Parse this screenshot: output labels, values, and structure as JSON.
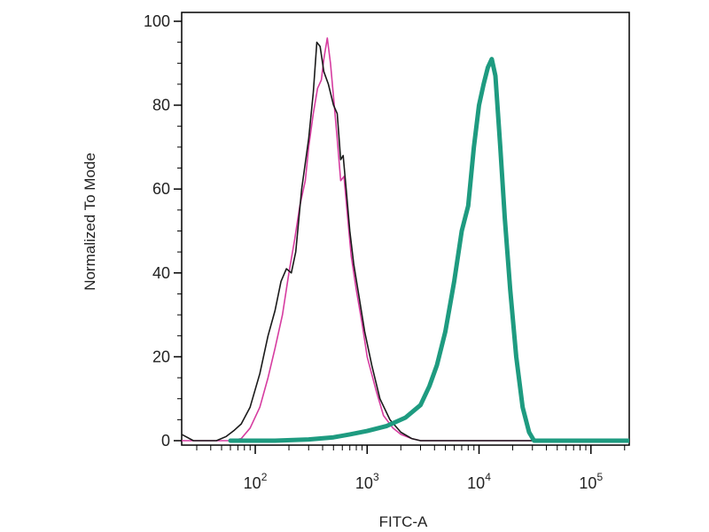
{
  "chart_data": {
    "type": "line",
    "title": "",
    "xlabel": "FITC-A",
    "ylabel": "Normalized To Mode",
    "x_scale": "log",
    "xlim": [
      22,
      220000
    ],
    "ylim": [
      0,
      100
    ],
    "grid": false,
    "legend": "none",
    "x_tick_values": [
      100,
      1000,
      10000,
      100000
    ],
    "x_tick_labels": [
      {
        "base": "10",
        "exp": "2"
      },
      {
        "base": "10",
        "exp": "3"
      },
      {
        "base": "10",
        "exp": "4"
      },
      {
        "base": "10",
        "exp": "5"
      }
    ],
    "y_ticks": [
      {
        "value": 0,
        "label": "0"
      },
      {
        "value": 20,
        "label": "20"
      },
      {
        "value": 40,
        "label": "40"
      },
      {
        "value": 60,
        "label": "60"
      },
      {
        "value": 80,
        "label": "80"
      },
      {
        "value": 100,
        "label": "100"
      }
    ],
    "series": [
      {
        "color": "#d63ca0",
        "width": 1.6,
        "points": [
          [
            22,
            0
          ],
          [
            60,
            0
          ],
          [
            75,
            0.5
          ],
          [
            90,
            3
          ],
          [
            110,
            8
          ],
          [
            130,
            15
          ],
          [
            150,
            22
          ],
          [
            175,
            30
          ],
          [
            200,
            40
          ],
          [
            225,
            48
          ],
          [
            250,
            56
          ],
          [
            280,
            62
          ],
          [
            300,
            70
          ],
          [
            330,
            78
          ],
          [
            360,
            84
          ],
          [
            390,
            86
          ],
          [
            410,
            91
          ],
          [
            440,
            96
          ],
          [
            470,
            90
          ],
          [
            500,
            82
          ],
          [
            540,
            72
          ],
          [
            580,
            62
          ],
          [
            620,
            63
          ],
          [
            660,
            55
          ],
          [
            720,
            44
          ],
          [
            800,
            36
          ],
          [
            900,
            28
          ],
          [
            1000,
            20
          ],
          [
            1200,
            12
          ],
          [
            1400,
            6
          ],
          [
            1700,
            3
          ],
          [
            2000,
            1.5
          ],
          [
            2500,
            0.5
          ],
          [
            3000,
            0
          ],
          [
            220000,
            0
          ]
        ]
      },
      {
        "color": "#1a1a1a",
        "width": 1.6,
        "points": [
          [
            22,
            1.5
          ],
          [
            28,
            0
          ],
          [
            40,
            0
          ],
          [
            45,
            0
          ],
          [
            55,
            1
          ],
          [
            65,
            2.5
          ],
          [
            75,
            4
          ],
          [
            90,
            8
          ],
          [
            110,
            16
          ],
          [
            130,
            25
          ],
          [
            150,
            31
          ],
          [
            170,
            38
          ],
          [
            190,
            41
          ],
          [
            210,
            40
          ],
          [
            230,
            45
          ],
          [
            260,
            60
          ],
          [
            300,
            72
          ],
          [
            330,
            83
          ],
          [
            355,
            95
          ],
          [
            380,
            94
          ],
          [
            410,
            88
          ],
          [
            450,
            85
          ],
          [
            500,
            80
          ],
          [
            540,
            78
          ],
          [
            580,
            67
          ],
          [
            610,
            68
          ],
          [
            650,
            60
          ],
          [
            700,
            50
          ],
          [
            760,
            42
          ],
          [
            850,
            34
          ],
          [
            950,
            26
          ],
          [
            1100,
            18
          ],
          [
            1300,
            10
          ],
          [
            1600,
            5
          ],
          [
            2000,
            2
          ],
          [
            2500,
            0.5
          ],
          [
            3000,
            0
          ],
          [
            220000,
            0
          ]
        ]
      },
      {
        "color": "#1e9b80",
        "width": 5,
        "points": [
          [
            60,
            0
          ],
          [
            150,
            0
          ],
          [
            300,
            0.3
          ],
          [
            500,
            0.8
          ],
          [
            700,
            1.5
          ],
          [
            1000,
            2.3
          ],
          [
            1500,
            3.5
          ],
          [
            2200,
            5.5
          ],
          [
            3000,
            8.5
          ],
          [
            3600,
            13
          ],
          [
            4200,
            18
          ],
          [
            5000,
            26
          ],
          [
            6000,
            38
          ],
          [
            7000,
            50
          ],
          [
            8000,
            56
          ],
          [
            9000,
            70
          ],
          [
            10000,
            80
          ],
          [
            11000,
            85
          ],
          [
            12000,
            89
          ],
          [
            13000,
            91
          ],
          [
            14000,
            87
          ],
          [
            15500,
            70
          ],
          [
            17000,
            53
          ],
          [
            19000,
            36
          ],
          [
            21500,
            20
          ],
          [
            24500,
            8
          ],
          [
            28000,
            2
          ],
          [
            31000,
            0
          ],
          [
            220000,
            0
          ]
        ]
      }
    ]
  }
}
